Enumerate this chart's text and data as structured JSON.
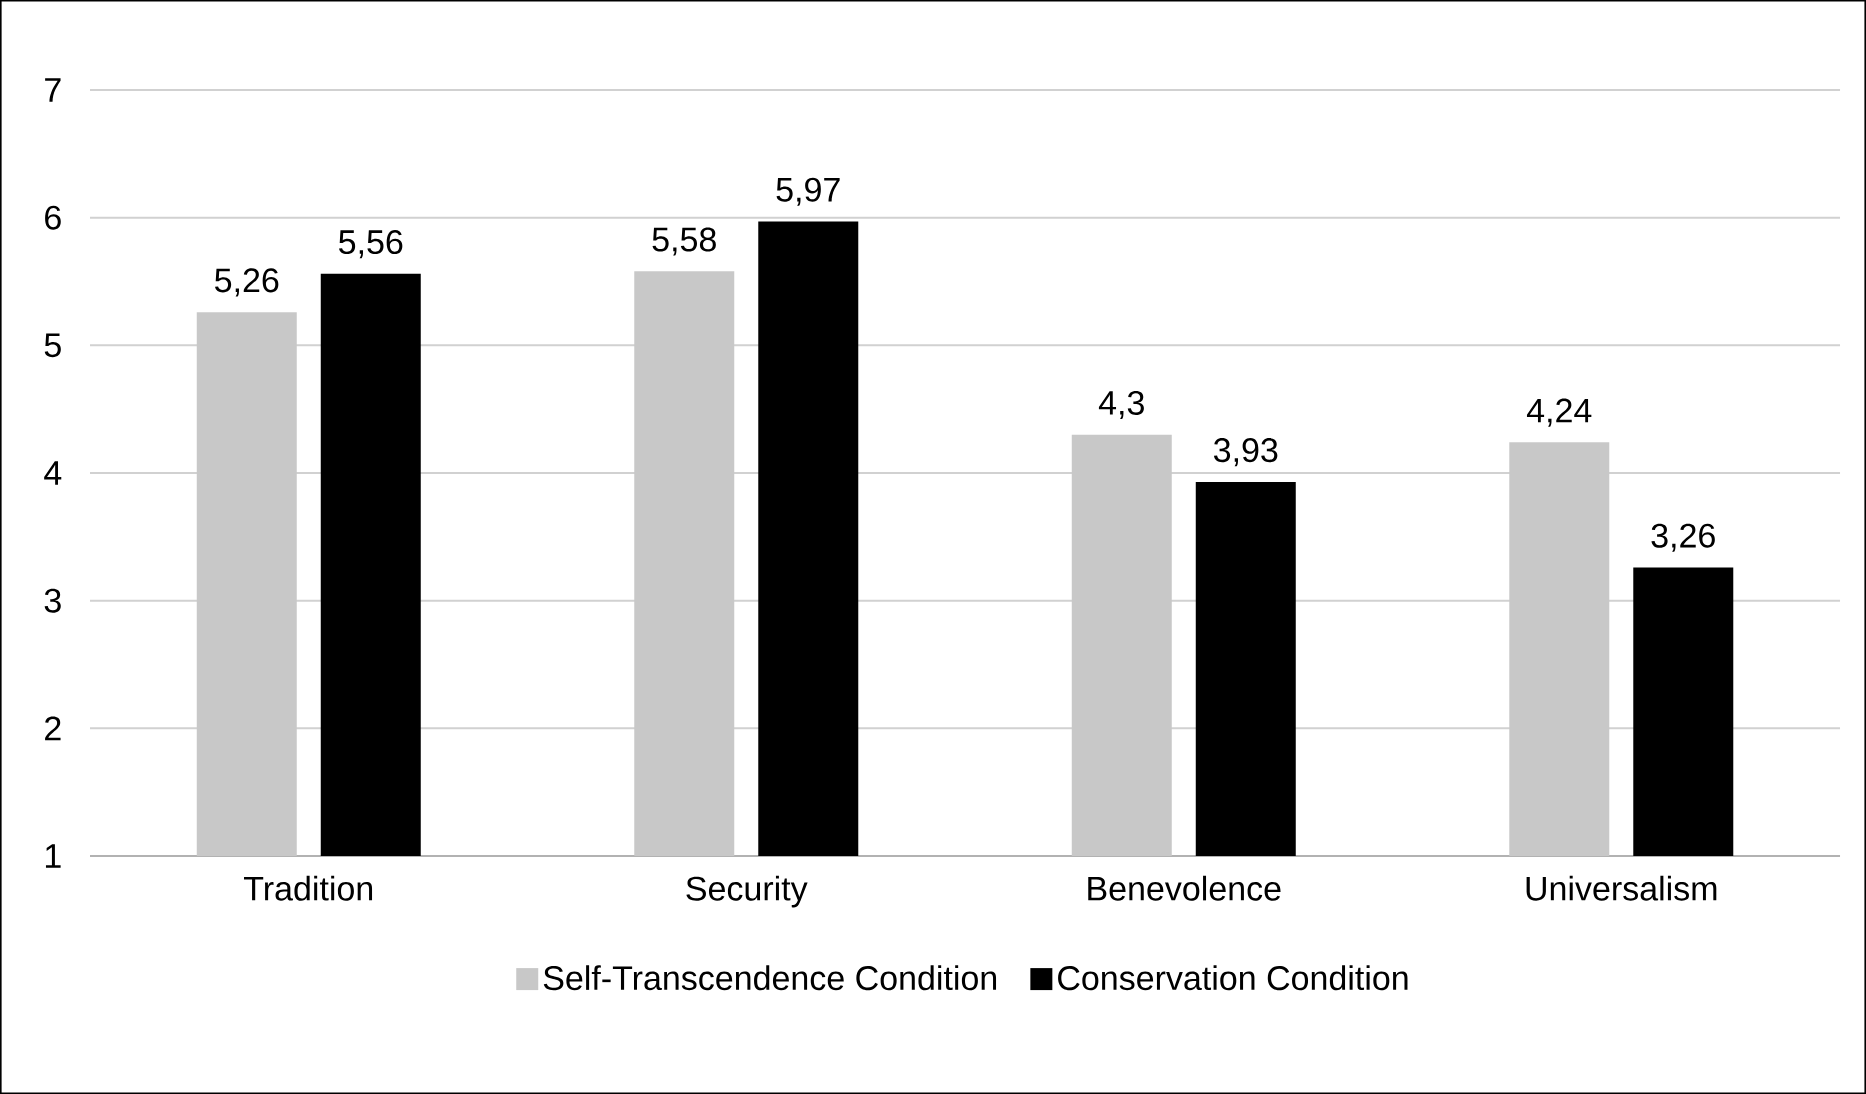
{
  "chart_data": {
    "type": "bar",
    "categories": [
      "Tradition",
      "Security",
      "Benevolence",
      "Universalism"
    ],
    "series": [
      {
        "name": "Self-Transcendence Condition",
        "color": "#c8c8c8",
        "values": [
          5.26,
          5.58,
          4.3,
          4.24
        ],
        "value_labels": [
          "5,26",
          "5,58",
          "4,3",
          "4,24"
        ]
      },
      {
        "name": "Conservation Condition",
        "color": "#000000",
        "values": [
          5.56,
          5.97,
          3.93,
          3.26
        ],
        "value_labels": [
          "5,56",
          "5,97",
          "3,93",
          "3,26"
        ]
      }
    ],
    "ylim": [
      1,
      7
    ],
    "yticks": [
      1,
      2,
      3,
      4,
      5,
      6,
      7
    ],
    "grid": "y",
    "legend": "bottom"
  }
}
